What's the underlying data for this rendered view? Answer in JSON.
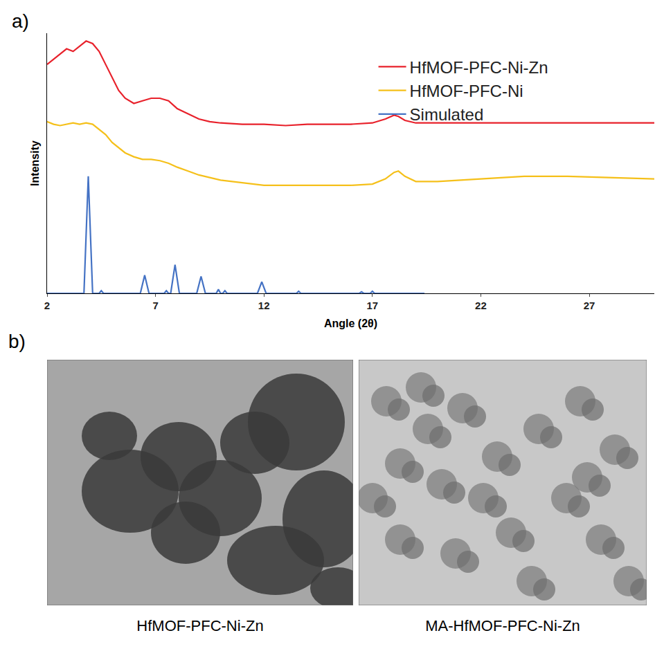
{
  "chart_data": {
    "type": "line",
    "x_label": "Angle (2θ)",
    "y_label": "Intensity",
    "xlim": [
      2,
      30
    ],
    "xticks": [
      2,
      7,
      12,
      17,
      22,
      27
    ],
    "ylim": [
      0,
      100
    ],
    "tick_labels": "x",
    "grid": false,
    "legend": "right",
    "series": [
      {
        "name": "HfMOF-PFC-Ni-Zn",
        "color": "#e8212b",
        "x": [
          2,
          2.3,
          2.6,
          2.9,
          3.2,
          3.5,
          3.8,
          4.1,
          4.4,
          4.7,
          5.0,
          5.3,
          5.6,
          6.0,
          6.4,
          6.8,
          7.2,
          7.6,
          8.0,
          8.5,
          9.0,
          9.5,
          10,
          11,
          12,
          13,
          14,
          15,
          16,
          17,
          17.6,
          18.0,
          18.2,
          18.5,
          19,
          20,
          22,
          24,
          26,
          28,
          30
        ],
        "values": [
          88,
          90,
          92,
          94,
          93,
          95,
          97,
          96,
          93,
          88,
          83,
          78,
          75,
          73,
          74,
          75,
          75,
          74,
          71,
          69,
          67,
          66,
          65.5,
          65,
          65,
          64.5,
          65,
          65,
          65,
          65.5,
          67,
          68.5,
          68,
          66.5,
          65.5,
          65.5,
          65.5,
          65.5,
          65.5,
          65.5,
          65.5
        ]
      },
      {
        "name": "HfMOF-PFC-Ni",
        "color": "#f5c01a",
        "x": [
          2,
          2.3,
          2.6,
          2.9,
          3.2,
          3.5,
          3.8,
          4.1,
          4.4,
          4.7,
          5.0,
          5.3,
          5.6,
          6.0,
          6.4,
          6.8,
          7.2,
          7.6,
          8.0,
          8.5,
          9.0,
          9.5,
          10,
          11,
          12,
          13,
          14,
          15,
          16,
          17,
          17.6,
          18.0,
          18.2,
          18.5,
          19,
          20,
          22,
          24,
          26,
          28,
          30
        ],
        "values": [
          66,
          65,
          64.5,
          65,
          65.5,
          65,
          65.5,
          65,
          63,
          61,
          58,
          56,
          54,
          52.5,
          51.5,
          51.5,
          51,
          50,
          48.5,
          47,
          45.5,
          44.5,
          43.5,
          42.5,
          41.5,
          41.5,
          41.5,
          41.5,
          41.5,
          42,
          44,
          46.5,
          47,
          45,
          43,
          43,
          44,
          45,
          45,
          44.5,
          44
        ]
      },
      {
        "name": "Simulated",
        "color": "#4472c4",
        "x": [
          2,
          3.7,
          3.9,
          4.1,
          4.4,
          4.5,
          4.6,
          6.3,
          6.5,
          6.7,
          7.4,
          7.5,
          7.6,
          7.7,
          7.9,
          8.1,
          8.9,
          9.1,
          9.3,
          9.8,
          9.9,
          10.0,
          10.1,
          10.2,
          10.3,
          11.7,
          11.9,
          12.1,
          13.5,
          13.6,
          13.7,
          16.4,
          16.5,
          16.6,
          16.9,
          17.0,
          17.1,
          19.4
        ],
        "values": [
          0,
          0,
          45,
          0,
          0,
          1,
          0,
          0,
          7,
          0,
          0,
          1,
          0,
          0,
          11,
          0,
          0,
          6.5,
          0,
          0,
          1.5,
          0,
          0,
          1,
          0,
          0,
          4.4,
          0,
          0,
          0.8,
          0,
          0,
          0.6,
          0,
          0,
          0.8,
          0,
          0
        ]
      }
    ]
  },
  "figure": {
    "panel_a": "a)",
    "panel_b": "b)",
    "images": [
      {
        "caption": "HfMOF-PFC-Ni-Zn"
      },
      {
        "caption": "MA-HfMOF-PFC-Ni-Zn"
      }
    ]
  }
}
